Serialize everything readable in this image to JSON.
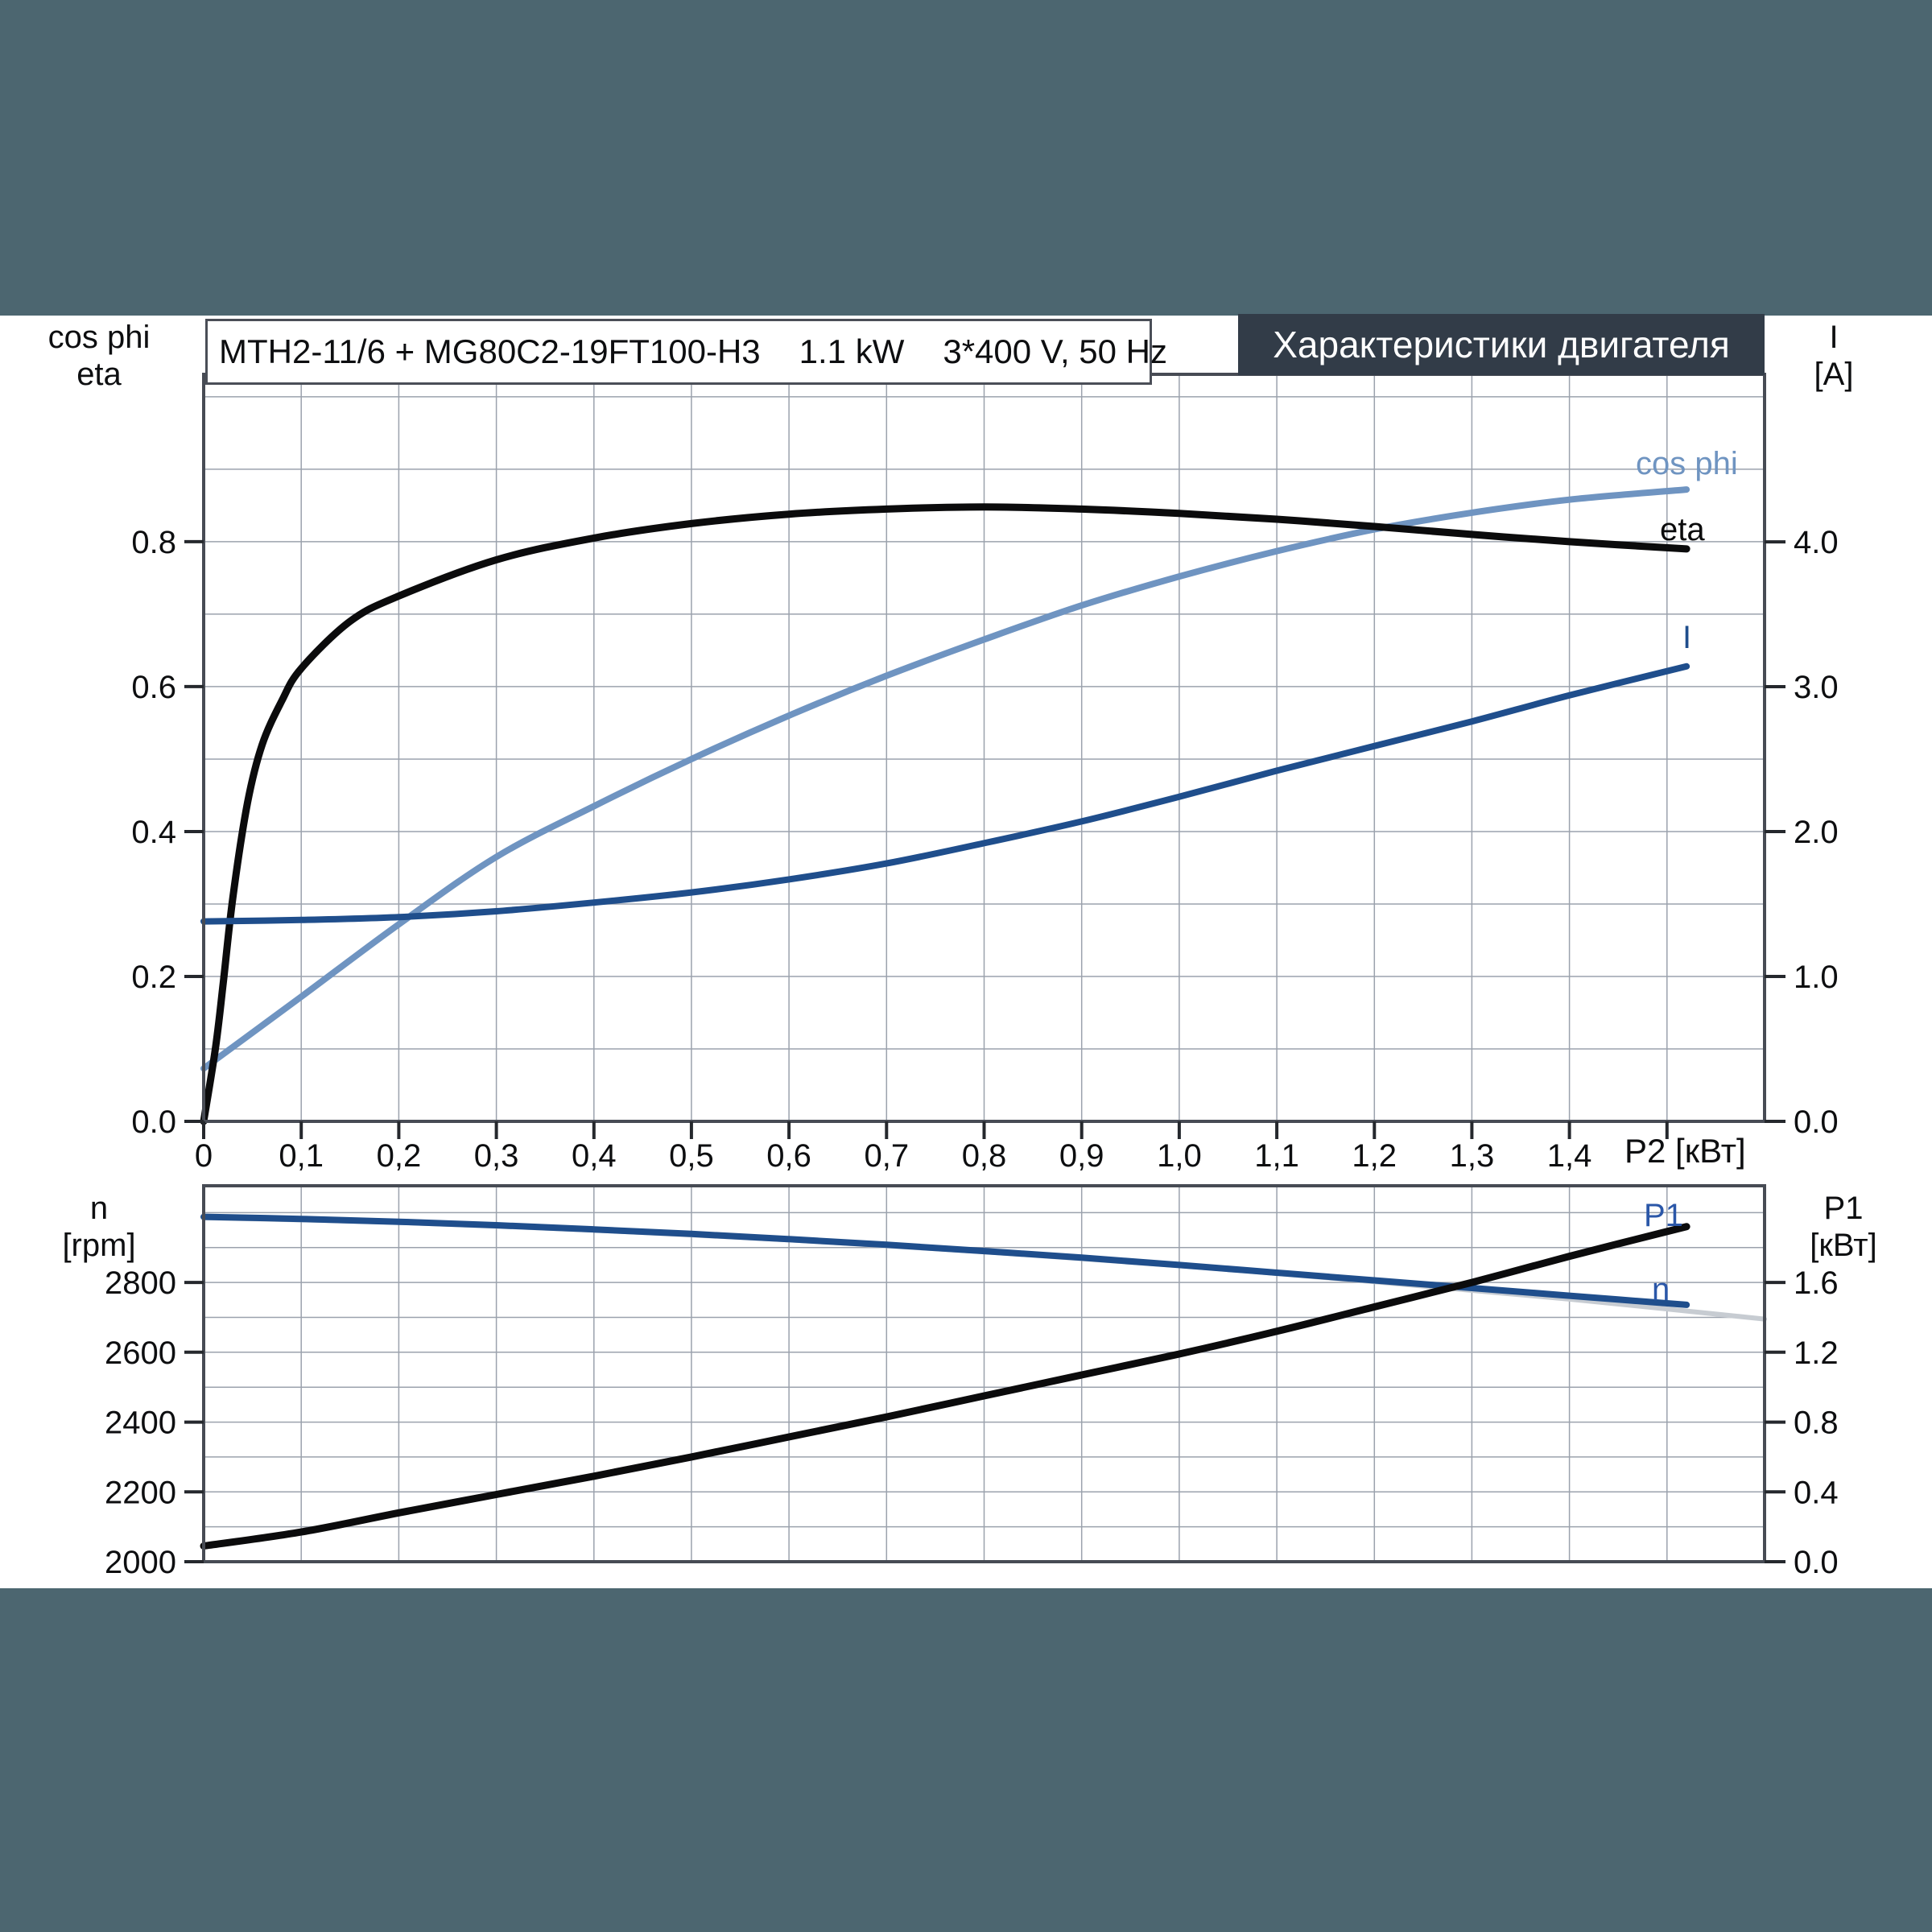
{
  "page": {
    "background": "#4c6670",
    "canvas_background": "#ffffff"
  },
  "header": {
    "title": "Характеристики двигателя",
    "bg": "#323c48",
    "text_color": "#ffffff"
  },
  "title_box": {
    "model": "MTH2-11/6 + MG80C2-19FT100-H3",
    "power": "1.1 kW",
    "supply": "3*400 V, 50 Hz"
  },
  "colors": {
    "background": "#4c6670",
    "frame": "#474b54",
    "gridline": "#9ba2ad",
    "tick": "#25282d",
    "text": "#0d0e10",
    "cos_phi_curve": "#6f94c1",
    "eta_curve": "#0b0b0c",
    "current_curve": "#1f4e8c",
    "speed_curve": "#1f4e8c",
    "p1_curve": "#0b0b0c",
    "curve_label_blue": "#2b57a8",
    "tolerance_gray": "#c7ccd2"
  },
  "chart_data": [
    {
      "type": "line",
      "title": "MTH2-11/6 + MG80C2-19FT100-H3  1.1 kW  3*400 V, 50 Hz",
      "x_axis": {
        "unit_label": "P2 [кВт]",
        "min": 0,
        "max": 1.6,
        "grid_step": 0.1,
        "ticks": [
          {
            "v": 0,
            "t": "0"
          },
          {
            "v": 0.1,
            "t": "0,1"
          },
          {
            "v": 0.2,
            "t": "0,2"
          },
          {
            "v": 0.3,
            "t": "0,3"
          },
          {
            "v": 0.4,
            "t": "0,4"
          },
          {
            "v": 0.5,
            "t": "0,5"
          },
          {
            "v": 0.6,
            "t": "0,6"
          },
          {
            "v": 0.7,
            "t": "0,7"
          },
          {
            "v": 0.8,
            "t": "0,8"
          },
          {
            "v": 0.9,
            "t": "0,9"
          },
          {
            "v": 1.0,
            "t": "1,0"
          },
          {
            "v": 1.1,
            "t": "1,1"
          },
          {
            "v": 1.2,
            "t": "1,2"
          },
          {
            "v": 1.3,
            "t": "1,3"
          },
          {
            "v": 1.4,
            "t": "1,4"
          }
        ]
      },
      "y_left": {
        "title_lines": [
          "cos phi",
          "eta"
        ],
        "min": 0,
        "max": 1.031,
        "grid_step": 0.1,
        "ticks": [
          {
            "v": 0,
            "t": "0.0"
          },
          {
            "v": 0.2,
            "t": "0.2"
          },
          {
            "v": 0.4,
            "t": "0.4"
          },
          {
            "v": 0.6,
            "t": "0.6"
          },
          {
            "v": 0.8,
            "t": "0.8"
          }
        ]
      },
      "y_right": {
        "title_lines": [
          "I",
          "[A]"
        ],
        "min": 0,
        "max": 5.156,
        "ticks": [
          {
            "v": 0,
            "t": "0.0"
          },
          {
            "v": 1,
            "t": "1.0"
          },
          {
            "v": 2,
            "t": "2.0"
          },
          {
            "v": 3,
            "t": "3.0"
          },
          {
            "v": 4,
            "t": "4.0"
          }
        ]
      },
      "series": [
        {
          "name": "cos phi",
          "axis": "left",
          "color": "#6f94c1",
          "width": 8,
          "points": [
            [
              0,
              0.073
            ],
            [
              0.1,
              0.172
            ],
            [
              0.2,
              0.272
            ],
            [
              0.3,
              0.365
            ],
            [
              0.4,
              0.435
            ],
            [
              0.5,
              0.5
            ],
            [
              0.6,
              0.56
            ],
            [
              0.7,
              0.615
            ],
            [
              0.8,
              0.665
            ],
            [
              0.9,
              0.712
            ],
            [
              1.0,
              0.752
            ],
            [
              1.1,
              0.787
            ],
            [
              1.2,
              0.817
            ],
            [
              1.3,
              0.84
            ],
            [
              1.4,
              0.858
            ],
            [
              1.52,
              0.872
            ]
          ]
        },
        {
          "name": "eta",
          "axis": "left",
          "color": "#0b0b0c",
          "width": 9,
          "points": [
            [
              0,
              0
            ],
            [
              0.012,
              0.1
            ],
            [
              0.02,
              0.19
            ],
            [
              0.03,
              0.31
            ],
            [
              0.045,
              0.44
            ],
            [
              0.06,
              0.52
            ],
            [
              0.08,
              0.58
            ],
            [
              0.1,
              0.625
            ],
            [
              0.15,
              0.69
            ],
            [
              0.2,
              0.725
            ],
            [
              0.3,
              0.775
            ],
            [
              0.4,
              0.805
            ],
            [
              0.5,
              0.825
            ],
            [
              0.6,
              0.838
            ],
            [
              0.7,
              0.845
            ],
            [
              0.8,
              0.848
            ],
            [
              0.9,
              0.845
            ],
            [
              1.0,
              0.839
            ],
            [
              1.1,
              0.831
            ],
            [
              1.2,
              0.821
            ],
            [
              1.3,
              0.81
            ],
            [
              1.4,
              0.8
            ],
            [
              1.52,
              0.79
            ]
          ]
        },
        {
          "name": "I",
          "axis": "right",
          "color": "#1f4e8c",
          "width": 8,
          "points": [
            [
              0,
              1.38
            ],
            [
              0.1,
              1.39
            ],
            [
              0.2,
              1.41
            ],
            [
              0.3,
              1.45
            ],
            [
              0.4,
              1.51
            ],
            [
              0.5,
              1.58
            ],
            [
              0.6,
              1.67
            ],
            [
              0.7,
              1.78
            ],
            [
              0.8,
              1.92
            ],
            [
              0.9,
              2.07
            ],
            [
              1.0,
              2.24
            ],
            [
              1.1,
              2.42
            ],
            [
              1.2,
              2.59
            ],
            [
              1.3,
              2.76
            ],
            [
              1.4,
              2.94
            ],
            [
              1.52,
              3.14
            ]
          ]
        }
      ]
    },
    {
      "type": "line",
      "x_axis": {
        "min": 0,
        "max": 1.6,
        "grid_step": 0.1,
        "ticks": []
      },
      "y_left": {
        "title_lines": [
          "n",
          "[rpm]"
        ],
        "min": 2000,
        "max": 3077,
        "grid_step": 100,
        "ticks": [
          {
            "v": 2000,
            "t": "2000"
          },
          {
            "v": 2200,
            "t": "2200"
          },
          {
            "v": 2400,
            "t": "2400"
          },
          {
            "v": 2600,
            "t": "2600"
          },
          {
            "v": 2800,
            "t": "2800"
          }
        ]
      },
      "y_right": {
        "title_lines": [
          "P1",
          "[кВт]"
        ],
        "min": 0,
        "max": 2.154,
        "ticks": [
          {
            "v": 0,
            "t": "0.0"
          },
          {
            "v": 0.4,
            "t": "0.4"
          },
          {
            "v": 0.8,
            "t": "0.8"
          },
          {
            "v": 1.2,
            "t": "1.2"
          },
          {
            "v": 1.6,
            "t": "1.6"
          }
        ]
      },
      "series": [
        {
          "name": "n tolerance",
          "axis": "left",
          "color": "#c7ccd2",
          "width": 6,
          "points": [
            [
              0,
              2985
            ],
            [
              0.2,
              2972
            ],
            [
              0.4,
              2950
            ],
            [
              0.6,
              2922
            ],
            [
              0.8,
              2888
            ],
            [
              1.0,
              2848
            ],
            [
              1.2,
              2802
            ],
            [
              1.4,
              2752
            ],
            [
              1.6,
              2695
            ]
          ]
        },
        {
          "name": "n",
          "axis": "left",
          "color": "#1f4e8c",
          "width": 8,
          "label_color": "#2b57a8",
          "points": [
            [
              0,
              2988
            ],
            [
              0.1,
              2982
            ],
            [
              0.2,
              2974
            ],
            [
              0.3,
              2964
            ],
            [
              0.4,
              2952
            ],
            [
              0.5,
              2939
            ],
            [
              0.6,
              2924
            ],
            [
              0.7,
              2908
            ],
            [
              0.8,
              2890
            ],
            [
              0.9,
              2871
            ],
            [
              1.0,
              2850
            ],
            [
              1.1,
              2828
            ],
            [
              1.2,
              2806
            ],
            [
              1.3,
              2784
            ],
            [
              1.4,
              2762
            ],
            [
              1.52,
              2736
            ]
          ]
        },
        {
          "name": "P1",
          "axis": "right",
          "color": "#0b0b0c",
          "width": 9,
          "label_color": "#2b57a8",
          "points": [
            [
              0,
              0.09
            ],
            [
              0.1,
              0.17
            ],
            [
              0.2,
              0.28
            ],
            [
              0.3,
              0.385
            ],
            [
              0.4,
              0.49
            ],
            [
              0.5,
              0.6
            ],
            [
              0.6,
              0.715
            ],
            [
              0.7,
              0.83
            ],
            [
              0.8,
              0.95
            ],
            [
              0.9,
              1.07
            ],
            [
              1.0,
              1.19
            ],
            [
              1.1,
              1.32
            ],
            [
              1.2,
              1.46
            ],
            [
              1.3,
              1.6
            ],
            [
              1.4,
              1.75
            ],
            [
              1.52,
              1.92
            ]
          ]
        }
      ]
    }
  ]
}
